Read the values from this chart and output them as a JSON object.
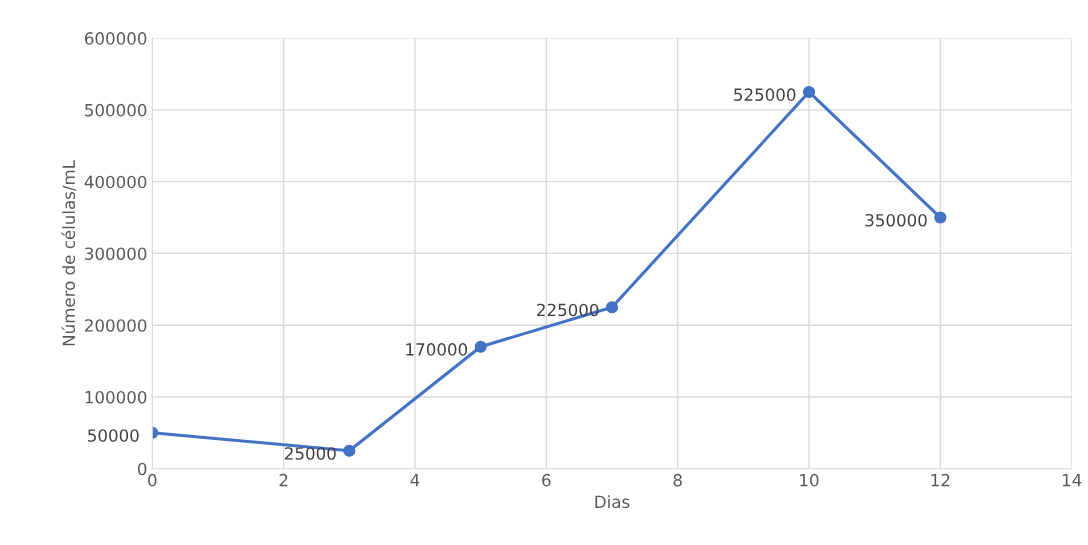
{
  "chart_data": {
    "type": "line",
    "xlabel": "Dias",
    "ylabel": "Número de células/mL",
    "x": [
      0,
      3,
      5,
      7,
      10,
      12
    ],
    "series": [
      {
        "color": "#4472c4",
        "values": [
          50000,
          25000,
          170000,
          225000,
          525000,
          350000
        ]
      }
    ],
    "xlim": [
      0,
      14
    ],
    "xticks": [
      0,
      2,
      4,
      6,
      8,
      10,
      12,
      14
    ],
    "ylim": [
      0,
      600000
    ],
    "yticks": [
      0,
      100000,
      200000,
      300000,
      400000,
      500000,
      600000
    ],
    "grid": true,
    "marker": "circle",
    "line_style": "solid",
    "data_labels": true
  }
}
